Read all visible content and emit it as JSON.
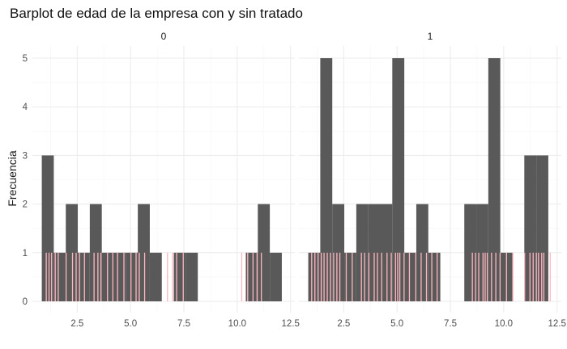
{
  "chart_data": {
    "type": "bar",
    "title": "Barplot de edad de la empresa con y sin tratado",
    "xlabel": "",
    "ylabel": "Frecuencia",
    "xlim": [
      0.4,
      12.7
    ],
    "ylim": [
      0,
      5.2
    ],
    "x_ticks": [
      2.5,
      5.0,
      7.5,
      10.0,
      12.5
    ],
    "x_tick_labels": [
      "2.5",
      "5.0",
      "7.5",
      "10.0",
      "12.5"
    ],
    "y_ticks": [
      0,
      1,
      2,
      3,
      4,
      5
    ],
    "y_tick_labels": [
      "0",
      "1",
      "2",
      "3",
      "4",
      "5"
    ],
    "grid": true,
    "bar_color": "#595959",
    "rug_color": "#ffb6c1",
    "bin_width": 0.5625,
    "panels": [
      {
        "label": "0",
        "bins_start": 0.84,
        "counts": [
          3,
          1,
          2,
          1,
          2,
          1,
          1,
          1,
          2,
          1,
          0,
          1,
          1,
          0,
          0,
          0,
          0,
          1,
          2,
          1
        ],
        "rug": [
          1.05,
          1.18,
          1.3,
          1.47,
          1.61,
          1.98,
          2.28,
          2.45,
          2.61,
          2.84,
          3.29,
          3.47,
          3.61,
          3.92,
          4.17,
          4.39,
          4.69,
          5.02,
          5.26,
          5.41,
          5.66,
          6.73,
          6.97,
          7.16,
          7.47,
          10.21,
          10.49,
          10.74,
          10.93,
          11.13
        ]
      },
      {
        "label": "1",
        "bins_start": 0.84,
        "counts": [
          1,
          5,
          2,
          1,
          2,
          2,
          2,
          5,
          1,
          2,
          1,
          0,
          0,
          2,
          2,
          5,
          1,
          0,
          3,
          3
        ],
        "rug": [
          1.0,
          1.15,
          1.3,
          1.45,
          1.58,
          1.73,
          1.88,
          2.03,
          2.18,
          2.32,
          2.62,
          2.9,
          3.33,
          3.48,
          3.68,
          3.93,
          4.08,
          4.28,
          4.53,
          4.73,
          4.93,
          5.03,
          5.13,
          5.33,
          5.58,
          5.88,
          6.13,
          6.38,
          6.63,
          6.88,
          8.53,
          8.68,
          8.83,
          9.03,
          9.13,
          9.23,
          9.43,
          9.63,
          9.83,
          10.13,
          10.43,
          10.98,
          11.23,
          11.38,
          11.53,
          11.63,
          11.78,
          11.88,
          12.18
        ]
      }
    ]
  }
}
